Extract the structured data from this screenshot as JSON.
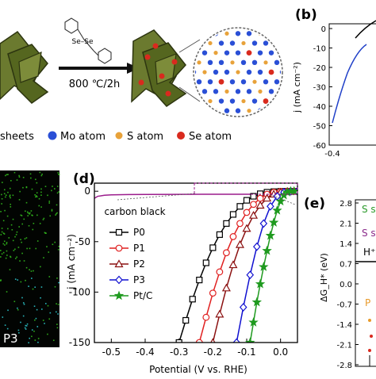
{
  "scheme": {
    "reagent_label": "Se–Se",
    "condition": "800 ℃/2h",
    "legend": [
      {
        "label": "sheets",
        "color": "#5a6b2a"
      },
      {
        "label": "Mo atom",
        "color": "#2a4fd6"
      },
      {
        "label": "S atom",
        "color": "#e8a23a"
      },
      {
        "label": "Se atom",
        "color": "#d92a1e"
      }
    ]
  },
  "panel_b": {
    "label": "(b)",
    "ylabel": "j (mA cm⁻²)",
    "y_ticks": [
      "0",
      "-10",
      "-20",
      "-30",
      "-40",
      "-50",
      "-60"
    ],
    "x_ticks": [
      "-0.4"
    ]
  },
  "panel_c": {
    "tag": "P3",
    "dot_colors": [
      "#35c41f",
      "#2fd2d8"
    ]
  },
  "panel_d": {
    "label": "(d)",
    "annotation": "carbon black"
  },
  "panel_e": {
    "label": "(e)",
    "ylabel": "ΔG_H* (eV)",
    "y_ticks": [
      "2.8",
      "2.1",
      "1.4",
      "0.7",
      "0.0",
      "-0.7",
      "-1.4",
      "-2.1",
      "-2.8"
    ],
    "texts": [
      {
        "text": "S s",
        "color": "#2c9a2c"
      },
      {
        "text": "S s",
        "color": "#8a2a8a"
      },
      {
        "text": "H⁺",
        "color": "#000000"
      },
      {
        "text": "P",
        "color": "#e89a2a"
      }
    ]
  },
  "chart_data": {
    "type": "line",
    "xlabel": "Potential (V vs. RHE)",
    "ylabel": "j (mA cm⁻²)",
    "xlim": [
      -0.55,
      0.05
    ],
    "ylim": [
      -150,
      8
    ],
    "x_ticks": [
      -0.5,
      -0.4,
      -0.3,
      -0.2,
      -0.1,
      0.0
    ],
    "x_tick_labels": [
      "-0.5",
      "-0.4",
      "-0.3",
      "-0.2",
      "-0.1",
      "0.0"
    ],
    "y_ticks": [
      0,
      -50,
      -100,
      -150
    ],
    "y_tick_labels": [
      "0",
      "-50",
      "-100",
      "-150"
    ],
    "series": [
      {
        "name": "carbon black",
        "color": "#9b1c8c",
        "marker": "none",
        "x": [
          -0.55,
          -0.54,
          -0.52,
          -0.5,
          -0.45,
          -0.4,
          -0.3,
          -0.2,
          -0.1,
          0.0,
          0.05
        ],
        "y": [
          -7,
          -5,
          -4,
          -3.6,
          -3.3,
          -3.2,
          -3.1,
          -3.0,
          -3.0,
          -3.0,
          -3.0
        ]
      },
      {
        "name": "P0",
        "color": "#000000",
        "marker": "square",
        "x": [
          -0.3,
          -0.28,
          -0.26,
          -0.24,
          -0.22,
          -0.2,
          -0.18,
          -0.16,
          -0.14,
          -0.12,
          -0.1,
          -0.08,
          -0.06,
          -0.04,
          -0.02,
          0.0,
          0.02,
          0.04
        ],
        "y": [
          -150,
          -128,
          -107,
          -88,
          -71,
          -56,
          -43,
          -32,
          -23,
          -15,
          -9,
          -5,
          -2.5,
          -1,
          -0.4,
          -0.1,
          0,
          0
        ]
      },
      {
        "name": "P1",
        "color": "#e02020",
        "marker": "circle",
        "x": [
          -0.24,
          -0.22,
          -0.2,
          -0.18,
          -0.16,
          -0.14,
          -0.12,
          -0.1,
          -0.08,
          -0.06,
          -0.04,
          -0.02,
          0.0,
          0.02,
          0.04
        ],
        "y": [
          -150,
          -125,
          -101,
          -80,
          -61,
          -45,
          -32,
          -21,
          -13,
          -7,
          -3,
          -1,
          -0.3,
          0,
          0
        ]
      },
      {
        "name": "P2",
        "color": "#8b1010",
        "marker": "triangle",
        "x": [
          -0.2,
          -0.18,
          -0.16,
          -0.14,
          -0.12,
          -0.1,
          -0.08,
          -0.06,
          -0.04,
          -0.02,
          0.0,
          0.02,
          0.04
        ],
        "y": [
          -150,
          -122,
          -96,
          -73,
          -53,
          -37,
          -24,
          -14,
          -7,
          -3,
          -1,
          -0.2,
          0
        ]
      },
      {
        "name": "P3",
        "color": "#1010d0",
        "marker": "diamond",
        "x": [
          -0.13,
          -0.11,
          -0.09,
          -0.07,
          -0.05,
          -0.03,
          -0.01,
          0.01,
          0.03,
          0.05
        ],
        "y": [
          -150,
          -115,
          -83,
          -55,
          -32,
          -15,
          -5,
          -1,
          0,
          0
        ]
      },
      {
        "name": "Pt/C",
        "color": "#1f9a1f",
        "marker": "star",
        "x": [
          -0.09,
          -0.08,
          -0.07,
          -0.06,
          -0.05,
          -0.04,
          -0.03,
          -0.02,
          -0.01,
          0.0,
          0.01,
          0.02,
          0.03,
          0.04
        ],
        "y": [
          -150,
          -130,
          -110,
          -92,
          -75,
          -59,
          -44,
          -31,
          -19,
          -10,
          -4,
          -1,
          0,
          0
        ]
      }
    ],
    "legend_position": "left"
  }
}
